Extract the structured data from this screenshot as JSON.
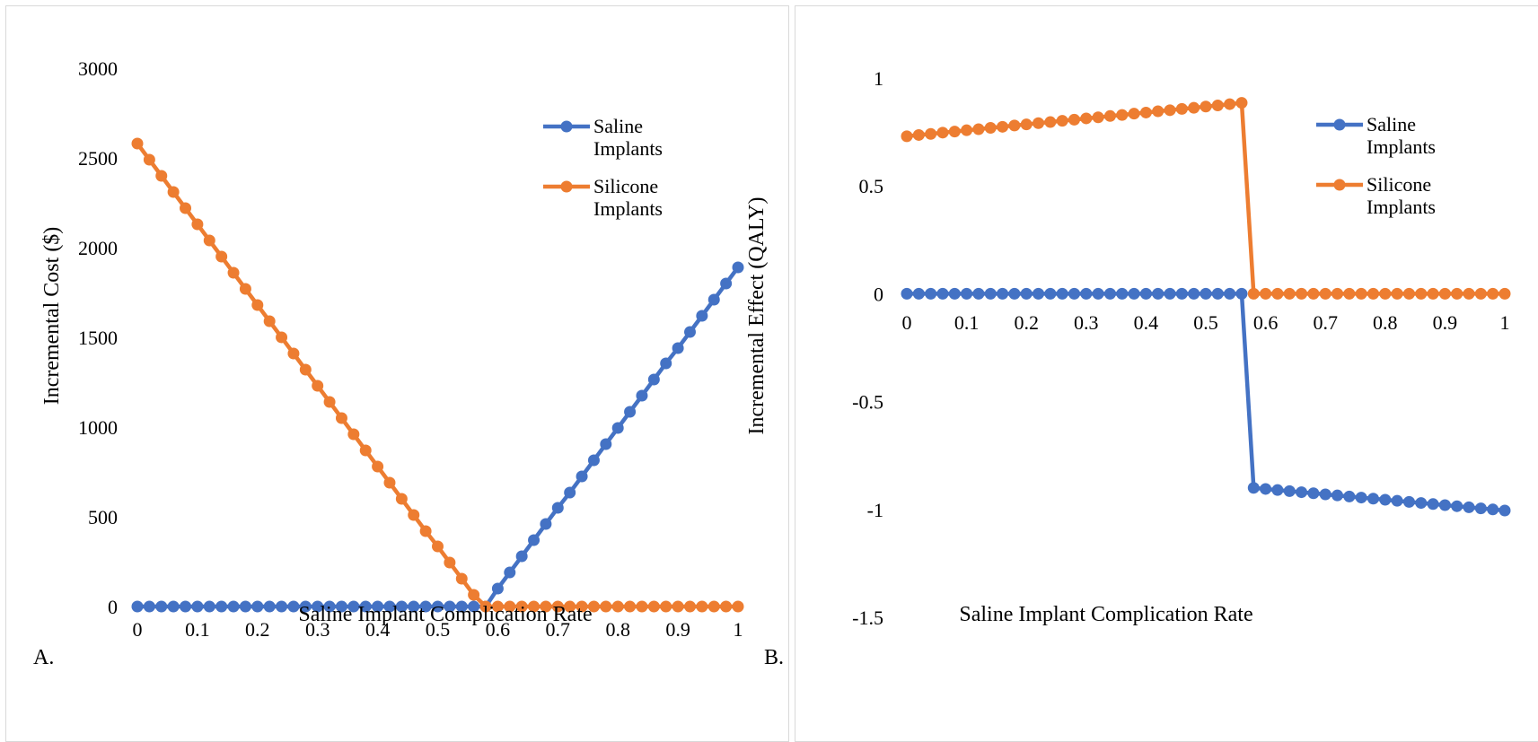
{
  "chart_data": [
    {
      "type": "line",
      "panel_label": "A.",
      "xlabel": "Saline Implant Complication Rate",
      "ylabel": "Incremental Cost ($)",
      "xlim": [
        0,
        1
      ],
      "ylim": [
        0,
        3000
      ],
      "xticks": [
        "0",
        "0.1",
        "0.2",
        "0.3",
        "0.4",
        "0.5",
        "0.6",
        "0.7",
        "0.8",
        "0.9",
        "1"
      ],
      "yticks": [
        "0",
        "500",
        "1000",
        "1500",
        "2000",
        "2500",
        "3000"
      ],
      "legend_position": "top-right",
      "x": [
        0,
        0.02,
        0.04,
        0.06,
        0.08,
        0.1,
        0.12,
        0.14,
        0.16,
        0.18,
        0.2,
        0.22,
        0.24,
        0.26,
        0.28,
        0.3,
        0.32,
        0.34,
        0.36,
        0.38,
        0.4,
        0.42,
        0.44,
        0.46,
        0.48,
        0.5,
        0.52,
        0.54,
        0.56,
        0.58,
        0.6,
        0.62,
        0.64,
        0.66,
        0.68,
        0.7,
        0.72,
        0.74,
        0.76,
        0.78,
        0.8,
        0.82,
        0.84,
        0.86,
        0.88,
        0.9,
        0.92,
        0.94,
        0.96,
        0.98,
        1
      ],
      "series": [
        {
          "name": "Saline Implants",
          "color": "#4472C4",
          "values": [
            0,
            0,
            0,
            0,
            0,
            0,
            0,
            0,
            0,
            0,
            0,
            0,
            0,
            0,
            0,
            0,
            0,
            0,
            0,
            0,
            0,
            0,
            0,
            0,
            0,
            0,
            0,
            0,
            0,
            0,
            100,
            190,
            280,
            370,
            460,
            550,
            635,
            725,
            815,
            905,
            995,
            1085,
            1175,
            1265,
            1355,
            1440,
            1530,
            1620,
            1710,
            1800,
            1890
          ]
        },
        {
          "name": "Silicone Implants",
          "color": "#ED7D31",
          "values": [
            2580,
            2490,
            2400,
            2310,
            2220,
            2130,
            2040,
            1950,
            1860,
            1770,
            1680,
            1590,
            1500,
            1410,
            1320,
            1230,
            1140,
            1050,
            960,
            870,
            780,
            690,
            600,
            510,
            420,
            335,
            245,
            155,
            65,
            0,
            0,
            0,
            0,
            0,
            0,
            0,
            0,
            0,
            0,
            0,
            0,
            0,
            0,
            0,
            0,
            0,
            0,
            0,
            0,
            0,
            0
          ]
        }
      ]
    },
    {
      "type": "line",
      "panel_label": "B.",
      "xlabel": "Saline Implant Complication Rate",
      "ylabel": "Incremental Effect (QALY)",
      "xlim": [
        0,
        1
      ],
      "ylim": [
        -1.5,
        1
      ],
      "xticks": [
        "0",
        "0.1",
        "0.2",
        "0.3",
        "0.4",
        "0.5",
        "0.6",
        "0.7",
        "0.8",
        "0.9",
        "1"
      ],
      "yticks": [
        "-1.5",
        "-1",
        "-0.5",
        "0",
        "0.5",
        "1"
      ],
      "legend_position": "top-right",
      "x": [
        0,
        0.02,
        0.04,
        0.06,
        0.08,
        0.1,
        0.12,
        0.14,
        0.16,
        0.18,
        0.2,
        0.22,
        0.24,
        0.26,
        0.28,
        0.3,
        0.32,
        0.34,
        0.36,
        0.38,
        0.4,
        0.42,
        0.44,
        0.46,
        0.48,
        0.5,
        0.52,
        0.54,
        0.56,
        0.58,
        0.6,
        0.62,
        0.64,
        0.66,
        0.68,
        0.7,
        0.72,
        0.74,
        0.76,
        0.78,
        0.8,
        0.82,
        0.84,
        0.86,
        0.88,
        0.9,
        0.92,
        0.94,
        0.96,
        0.98,
        1
      ],
      "series": [
        {
          "name": "Saline Implants",
          "color": "#4472C4",
          "values": [
            0,
            0,
            0,
            0,
            0,
            0,
            0,
            0,
            0,
            0,
            0,
            0,
            0,
            0,
            0,
            0,
            0,
            0,
            0,
            0,
            0,
            0,
            0,
            0,
            0,
            0,
            0,
            0,
            0,
            -0.9,
            -0.905,
            -0.91,
            -0.915,
            -0.92,
            -0.925,
            -0.93,
            -0.935,
            -0.94,
            -0.945,
            -0.95,
            -0.955,
            -0.96,
            -0.965,
            -0.97,
            -0.975,
            -0.98,
            -0.985,
            -0.99,
            -0.995,
            -1.0,
            -1.005
          ]
        },
        {
          "name": "Silicone Implants",
          "color": "#ED7D31",
          "values": [
            0.73,
            0.736,
            0.741,
            0.747,
            0.752,
            0.758,
            0.763,
            0.769,
            0.774,
            0.78,
            0.785,
            0.791,
            0.796,
            0.802,
            0.807,
            0.813,
            0.818,
            0.824,
            0.829,
            0.835,
            0.84,
            0.846,
            0.851,
            0.857,
            0.862,
            0.868,
            0.873,
            0.879,
            0.885,
            0,
            0,
            0,
            0,
            0,
            0,
            0,
            0,
            0,
            0,
            0,
            0,
            0,
            0,
            0,
            0,
            0,
            0,
            0,
            0,
            0,
            0
          ]
        }
      ]
    }
  ]
}
